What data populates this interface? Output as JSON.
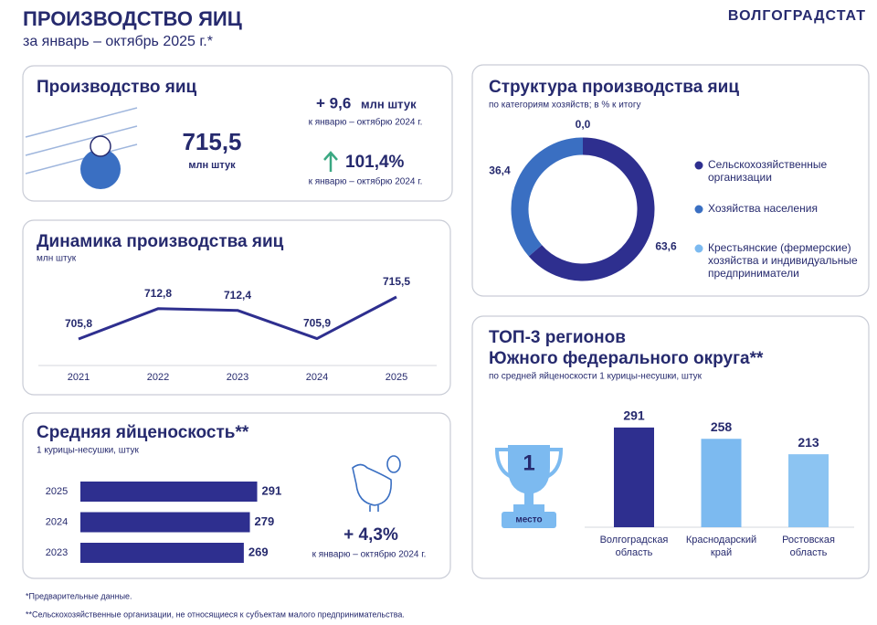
{
  "header": {
    "title": "ПРОИЗВОДСТВО ЯИЦ",
    "subtitle": "за январь – октябрь 2025 г.*",
    "brand": "ВОЛГОГРАДСТАТ"
  },
  "production": {
    "title": "Производство яиц",
    "value": "715,5",
    "unit": "млн штук",
    "change_1": "+ 9,6",
    "change_1_unit": "млн штук",
    "note_1": "к январю – октябрю 2024 г.",
    "change_2": "101,4%",
    "note_2": "к январю – октябрю 2024 г."
  },
  "laying_change": {
    "change": "+ 4,3%",
    "note": "к январю – октябрю 2024 г."
  },
  "badge": {
    "number": "1",
    "label": "место"
  },
  "footnotes": [
    "*Предварительные данные.",
    "**Сельскохозяйственные организации, не относящиеся к субъектам малого предпринимательства."
  ],
  "chart_data": [
    {
      "type": "line",
      "title": "Динамика производства яиц",
      "subtitle": "млн штук",
      "categories": [
        "2021",
        "2022",
        "2023",
        "2024",
        "2025"
      ],
      "values": [
        705.8,
        712.8,
        712.4,
        705.9,
        715.5
      ],
      "value_labels": [
        "705,8",
        "712,8",
        "712,4",
        "705,9",
        "715,5"
      ],
      "color": "#2e2f8f"
    },
    {
      "type": "donut",
      "title": "Структура производства яиц",
      "subtitle": "по категориям хозяйств; в % к итогу",
      "categories": [
        [
          "Сельскохозяйственные",
          "организации"
        ],
        [
          "Хозяйства населения"
        ],
        [
          "Крестьянские (фермерские)",
          "хозяйства и индивидуальные",
          "предприниматели"
        ]
      ],
      "values": [
        63.6,
        36.4,
        0.0
      ],
      "value_labels": [
        "63,6",
        "36,4",
        "0,0"
      ],
      "colors": [
        "#2e2f8f",
        "#3a6fc2",
        "#7cbaf0"
      ]
    },
    {
      "type": "hbar",
      "title": "Средняя яйценоскость**",
      "subtitle": "1 курицы-несушки, штук",
      "categories": [
        "2025",
        "2024",
        "2023"
      ],
      "values": [
        291,
        279,
        269
      ],
      "color": "#2e2f8f"
    },
    {
      "type": "bar",
      "title": [
        "ТОП-3 регионов",
        "Южного федерального округа**"
      ],
      "subtitle": "по средней яйценоскости 1 курицы-несушки, штук",
      "categories": [
        [
          "Волгоградская",
          "область"
        ],
        [
          "Краснодарский",
          "край"
        ],
        [
          "Ростовская",
          "область"
        ]
      ],
      "values": [
        291,
        258,
        213
      ],
      "colors": [
        "#2e2f8f",
        "#7cbaf0",
        "#8cc4f2"
      ]
    }
  ]
}
